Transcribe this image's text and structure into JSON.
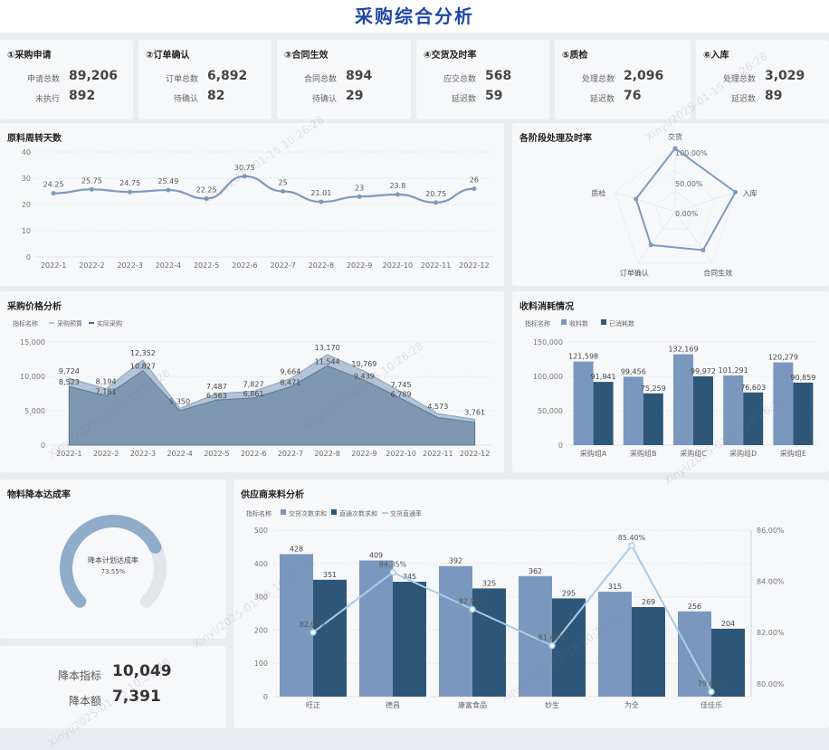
{
  "header": {
    "title": "采购综合分析"
  },
  "kpis": [
    {
      "title": "①采购申请",
      "row1": {
        "label": "申请总数",
        "value": "89,206"
      },
      "row2": {
        "label": "未执行",
        "value": "892"
      }
    },
    {
      "title": "②订单确认",
      "row1": {
        "label": "订单总数",
        "value": "6,892"
      },
      "row2": {
        "label": "待确认",
        "value": "82"
      }
    },
    {
      "title": "③合同生效",
      "row1": {
        "label": "合同总数",
        "value": "894"
      },
      "row2": {
        "label": "待确认",
        "value": "29"
      }
    },
    {
      "title": "④交货及时率",
      "row1": {
        "label": "应交总数",
        "value": "568"
      },
      "row2": {
        "label": "延迟数",
        "value": "59"
      }
    },
    {
      "title": "⑤质检",
      "row1": {
        "label": "处理总数",
        "value": "2,096"
      },
      "row2": {
        "label": "延迟数",
        "value": "76"
      }
    },
    {
      "title": "⑥入库",
      "row1": {
        "label": "处理总数",
        "value": "3,029"
      },
      "row2": {
        "label": "延迟数",
        "value": "89"
      }
    }
  ],
  "panels": {
    "turnover": "原料周转天数",
    "stage": "各阶段处理及时率",
    "price": "采购价格分析",
    "receipt": "收料消耗情况",
    "reduction": "物料降本达成率",
    "supplier": "供应商来料分析"
  },
  "gauge": {
    "label": "降本计划达成率",
    "value_text": "73.55%",
    "value": 73.55
  },
  "reduction_stats": [
    {
      "label": "降本指标",
      "value": "10,049"
    },
    {
      "label": "降本额",
      "value": "7,391"
    }
  ],
  "watermark": "Xinyi/2025-01-15 10:26:28",
  "colors": {
    "accent": "#1f47a8",
    "light": "#7a98bd",
    "dark": "#2e5677",
    "line": "#a8cdea",
    "area": "#7d96b0"
  },
  "chart_data": [
    {
      "id": "turnover",
      "type": "line",
      "categories": [
        "2022-1",
        "2022-2",
        "2022-3",
        "2022-4",
        "2022-5",
        "2022-6",
        "2022-7",
        "2022-8",
        "2022-9",
        "2022-10",
        "2022-11",
        "2022-12"
      ],
      "values": [
        24.25,
        25.75,
        24.75,
        25.49,
        22.25,
        30.75,
        25,
        21.01,
        23,
        23.8,
        20.75,
        26
      ],
      "labels": [
        "24.25",
        "25.75",
        "24.75",
        "25.49",
        "22.25",
        "30.75",
        "25",
        "21.01",
        "23",
        "23.8",
        "20.75",
        "26"
      ],
      "ylim": [
        0,
        40
      ],
      "yticks": [
        "0",
        "10",
        "20",
        "30",
        "40"
      ]
    },
    {
      "id": "stage",
      "type": "radar",
      "axes": [
        "交货",
        "入库",
        "合同生效",
        "订单确认",
        "质检"
      ],
      "values": [
        1,
        1,
        0.75,
        0.65,
        0.65
      ],
      "ring_labels": [
        "100.00%",
        "50.00%",
        "0.00%"
      ]
    },
    {
      "id": "price",
      "type": "area",
      "legend_title": "指标名称",
      "categories": [
        "2022-1",
        "2022-2",
        "2022-3",
        "2022-4",
        "2022-5",
        "2022-6",
        "2022-7",
        "2022-8",
        "2022-9",
        "2022-10",
        "2022-11",
        "2022-12"
      ],
      "series": [
        {
          "name": "采购预算",
          "values": [
            9724,
            8194,
            12352,
            5350,
            7487,
            7827,
            9664,
            13170,
            10769,
            7745,
            4573,
            3761
          ],
          "labels": [
            "9,724",
            "8,194",
            "12,352",
            "5,350",
            "7,487",
            "7,827",
            "9,664",
            "13,170",
            "10,769",
            "7,745",
            "4,573",
            "3,761"
          ]
        },
        {
          "name": "实际采购",
          "values": [
            8523,
            7181,
            10827,
            5000,
            6563,
            6861,
            8471,
            11544,
            9439,
            6789,
            4000,
            3300
          ],
          "labels": [
            "8,523",
            "7,181",
            "10,827",
            "",
            "6,563",
            "6,861",
            "8,471",
            "11,544",
            "9,439",
            "6,789",
            "",
            ""
          ]
        }
      ],
      "ylim": [
        0,
        15000
      ],
      "yticks": [
        "0",
        "5,000",
        "10,000",
        "15,000"
      ]
    },
    {
      "id": "receipt",
      "type": "bar",
      "legend_title": "指标名称",
      "categories": [
        "采购组A",
        "采购组B",
        "采购组C",
        "采购组D",
        "采购组E"
      ],
      "series": [
        {
          "name": "收料数",
          "values": [
            121598,
            99456,
            132169,
            101291,
            120279
          ],
          "labels": [
            "121,598",
            "99,456",
            "132,169",
            "101,291",
            "120,279"
          ]
        },
        {
          "name": "已消耗数",
          "values": [
            91941,
            75259,
            99972,
            76603,
            90859
          ],
          "labels": [
            "91,941",
            "75,259",
            "99,972",
            "76,603",
            "90,859"
          ]
        }
      ],
      "ylim": [
        0,
        150000
      ],
      "yticks": [
        "0",
        "50,000",
        "100,000",
        "150,000"
      ]
    },
    {
      "id": "supplier",
      "type": "bar",
      "legend_title": "指标名称",
      "categories": [
        "旺正",
        "德昌",
        "康富食品",
        "妙生",
        "为全",
        "佳佳乐"
      ],
      "series": [
        {
          "name": "交货次数求和",
          "values": [
            428,
            409,
            392,
            362,
            315,
            256
          ]
        },
        {
          "name": "直通次数求和",
          "values": [
            351,
            345,
            325,
            295,
            269,
            204
          ]
        },
        {
          "name": "交货直通率",
          "values": [
            82.01,
            84.35,
            82.91,
            81.49,
            85.4,
            79.69
          ],
          "labels": [
            "82.01%",
            "84.35%",
            "82.91%",
            "81.49%",
            "85.40%",
            "79.69%"
          ]
        }
      ],
      "ylim": [
        0,
        500
      ],
      "yticks": [
        "0",
        "100",
        "200",
        "300",
        "400",
        "500"
      ],
      "y2lim": [
        79.5,
        86
      ],
      "y2ticks": [
        "80.00%",
        "82.00%",
        "84.00%",
        "86.00%"
      ]
    }
  ]
}
